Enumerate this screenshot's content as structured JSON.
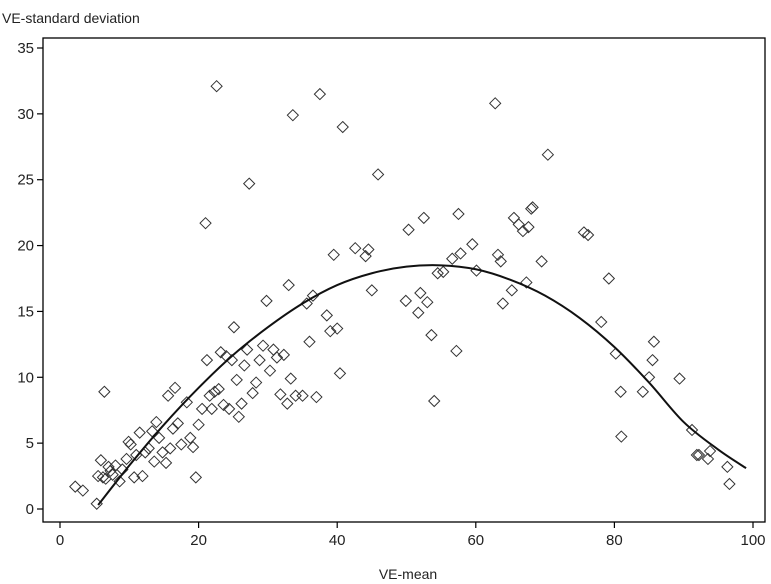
{
  "chart_data": {
    "type": "scatter",
    "ylabel": "VE-standard deviation",
    "xlabel": "VE-mean",
    "xlim": [
      0,
      100
    ],
    "ylim": [
      0,
      35
    ],
    "x_ticks": [
      0,
      20,
      40,
      60,
      80,
      100
    ],
    "y_ticks": [
      0,
      5,
      10,
      15,
      20,
      25,
      30,
      35
    ],
    "grid": false,
    "marker": "diamond",
    "colors": {
      "marker": "#333333",
      "curve": "#111111",
      "axis": "#000000"
    },
    "fit_curve": {
      "x": [
        5.5,
        10,
        15,
        20,
        25,
        30,
        35,
        40,
        45,
        50,
        55,
        60,
        65,
        70,
        75,
        80,
        85,
        90,
        95,
        99
      ],
      "y": [
        0.3,
        3.3,
        6.4,
        9.2,
        11.7,
        13.8,
        15.6,
        17.0,
        17.9,
        18.4,
        18.5,
        18.2,
        17.4,
        16.2,
        14.5,
        12.3,
        9.6,
        6.6,
        4.5,
        3.1
      ]
    },
    "points": [
      [
        2.2,
        1.7
      ],
      [
        3.3,
        1.4
      ],
      [
        5.3,
        0.4
      ],
      [
        5.5,
        2.5
      ],
      [
        5.9,
        3.7
      ],
      [
        6.2,
        2.4
      ],
      [
        6.4,
        8.9
      ],
      [
        6.6,
        2.3
      ],
      [
        7.0,
        3.2
      ],
      [
        7.3,
        2.9
      ],
      [
        7.6,
        2.6
      ],
      [
        8.0,
        3.3
      ],
      [
        8.6,
        2.1
      ],
      [
        9.0,
        3.0
      ],
      [
        9.6,
        3.8
      ],
      [
        9.9,
        5.1
      ],
      [
        10.2,
        4.9
      ],
      [
        10.7,
        2.4
      ],
      [
        11.0,
        4.1
      ],
      [
        11.5,
        5.8
      ],
      [
        11.9,
        2.5
      ],
      [
        12.3,
        4.3
      ],
      [
        12.8,
        4.6
      ],
      [
        13.3,
        5.9
      ],
      [
        13.6,
        3.6
      ],
      [
        13.9,
        6.6
      ],
      [
        14.3,
        5.4
      ],
      [
        14.8,
        4.3
      ],
      [
        15.3,
        3.5
      ],
      [
        15.6,
        8.6
      ],
      [
        15.9,
        4.6
      ],
      [
        16.3,
        6.1
      ],
      [
        16.6,
        9.2
      ],
      [
        17.0,
        6.5
      ],
      [
        17.5,
        4.9
      ],
      [
        18.3,
        8.1
      ],
      [
        18.8,
        5.4
      ],
      [
        19.2,
        4.7
      ],
      [
        19.6,
        2.4
      ],
      [
        20.0,
        6.4
      ],
      [
        20.5,
        7.6
      ],
      [
        21.0,
        21.7
      ],
      [
        21.2,
        11.3
      ],
      [
        21.6,
        8.6
      ],
      [
        21.9,
        7.6
      ],
      [
        22.3,
        8.9
      ],
      [
        22.6,
        32.1
      ],
      [
        22.9,
        9.1
      ],
      [
        23.2,
        11.9
      ],
      [
        23.6,
        7.9
      ],
      [
        24.0,
        11.6
      ],
      [
        24.4,
        7.6
      ],
      [
        24.8,
        11.3
      ],
      [
        25.1,
        13.8
      ],
      [
        25.5,
        9.8
      ],
      [
        25.8,
        7.0
      ],
      [
        26.2,
        8.0
      ],
      [
        26.6,
        10.9
      ],
      [
        27.0,
        12.1
      ],
      [
        27.3,
        24.7
      ],
      [
        27.8,
        8.8
      ],
      [
        28.3,
        9.6
      ],
      [
        28.8,
        11.3
      ],
      [
        29.3,
        12.4
      ],
      [
        29.8,
        15.8
      ],
      [
        30.3,
        10.5
      ],
      [
        30.8,
        12.1
      ],
      [
        31.3,
        11.5
      ],
      [
        31.8,
        8.7
      ],
      [
        32.3,
        11.7
      ],
      [
        32.8,
        8.0
      ],
      [
        33.0,
        17.0
      ],
      [
        33.3,
        9.9
      ],
      [
        33.6,
        29.9
      ],
      [
        34.0,
        8.6
      ],
      [
        35.0,
        8.6
      ],
      [
        35.6,
        15.6
      ],
      [
        36.0,
        12.7
      ],
      [
        36.5,
        16.2
      ],
      [
        37.0,
        8.5
      ],
      [
        37.5,
        31.5
      ],
      [
        38.5,
        14.7
      ],
      [
        39.0,
        13.5
      ],
      [
        39.5,
        19.3
      ],
      [
        40.0,
        13.7
      ],
      [
        40.4,
        10.3
      ],
      [
        40.8,
        29.0
      ],
      [
        42.6,
        19.8
      ],
      [
        44.1,
        19.2
      ],
      [
        44.5,
        19.7
      ],
      [
        45.0,
        16.6
      ],
      [
        45.9,
        25.4
      ],
      [
        49.9,
        15.8
      ],
      [
        50.3,
        21.2
      ],
      [
        51.7,
        14.9
      ],
      [
        52.0,
        16.4
      ],
      [
        52.5,
        22.1
      ],
      [
        53.0,
        15.7
      ],
      [
        53.6,
        13.2
      ],
      [
        54.0,
        8.2
      ],
      [
        54.5,
        17.9
      ],
      [
        55.3,
        18.0
      ],
      [
        56.6,
        19.0
      ],
      [
        57.2,
        12.0
      ],
      [
        57.5,
        22.4
      ],
      [
        57.8,
        19.4
      ],
      [
        59.5,
        20.1
      ],
      [
        60.1,
        18.1
      ],
      [
        62.8,
        30.8
      ],
      [
        63.2,
        19.3
      ],
      [
        63.6,
        18.8
      ],
      [
        63.9,
        15.6
      ],
      [
        65.2,
        16.6
      ],
      [
        65.5,
        22.1
      ],
      [
        66.2,
        21.6
      ],
      [
        66.8,
        21.1
      ],
      [
        67.3,
        17.2
      ],
      [
        67.6,
        21.4
      ],
      [
        68.0,
        22.8
      ],
      [
        68.2,
        22.9
      ],
      [
        69.5,
        18.8
      ],
      [
        70.4,
        26.9
      ],
      [
        75.6,
        21.0
      ],
      [
        76.2,
        20.8
      ],
      [
        78.1,
        14.2
      ],
      [
        79.2,
        17.5
      ],
      [
        80.2,
        11.8
      ],
      [
        80.9,
        8.9
      ],
      [
        81.0,
        5.5
      ],
      [
        84.1,
        8.9
      ],
      [
        85.0,
        10.0
      ],
      [
        85.5,
        11.3
      ],
      [
        85.7,
        12.7
      ],
      [
        89.4,
        9.9
      ],
      [
        91.2,
        6.0
      ],
      [
        91.9,
        4.1
      ],
      [
        92.2,
        4.1
      ],
      [
        93.5,
        3.8
      ],
      [
        93.8,
        4.4
      ],
      [
        96.3,
        3.2
      ],
      [
        96.6,
        1.9
      ]
    ]
  }
}
